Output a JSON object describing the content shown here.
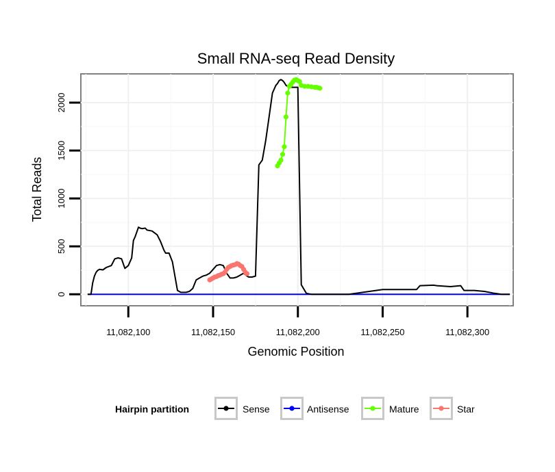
{
  "chart_data": {
    "type": "line",
    "title": "Small RNA-seq Read Density",
    "xlabel": "Genomic Position",
    "ylabel": "Total Reads",
    "xlim": [
      11082072,
      11082327
    ],
    "ylim": [
      -120,
      2300
    ],
    "xticks": [
      11082100,
      11082150,
      11082200,
      11082250,
      11082300
    ],
    "xtick_labels": [
      "11,082,100",
      "11,082,150",
      "11,082,200",
      "11,082,250",
      "11,082,300"
    ],
    "yticks": [
      0,
      500,
      1000,
      1500,
      2000
    ],
    "ytick_labels": [
      "0",
      "500",
      "1000",
      "1500",
      "2000"
    ],
    "grid": true,
    "legend": {
      "title": "Hairpin partition",
      "position": "bottom",
      "entries": [
        "Sense",
        "Antisense",
        "Mature",
        "Star"
      ]
    },
    "series": [
      {
        "name": "Sense",
        "color": "#000000",
        "markers": false,
        "x": [
          11082076,
          11082078,
          11082079,
          11082080,
          11082081,
          11082082,
          11082083,
          11082085,
          11082087,
          11082090,
          11082092,
          11082094,
          11082096,
          11082098,
          11082100,
          11082102,
          11082103,
          11082104,
          11082105,
          11082106,
          11082107,
          11082108,
          11082110,
          11082111,
          11082114,
          11082117,
          11082119,
          11082121,
          11082122,
          11082124,
          11082126,
          11082129,
          11082131,
          11082133,
          11082134,
          11082136,
          11082138,
          11082140,
          11082142,
          11082144,
          11082146,
          11082148,
          11082150,
          11082152,
          11082154,
          11082156,
          11082158,
          11082160,
          11082162,
          11082164,
          11082166,
          11082168,
          11082170,
          11082171,
          11082172,
          11082173,
          11082175,
          11082177,
          11082179,
          11082181,
          11082183,
          11082185,
          11082187,
          11082188,
          11082189,
          11082190,
          11082191,
          11082192,
          11082193,
          11082194,
          11082195,
          11082196,
          11082198,
          11082200,
          11082202,
          11082205,
          11082208,
          11082211,
          11082214,
          11082215,
          11082216,
          11082218,
          11082230,
          11082250,
          11082270,
          11082272,
          11082280,
          11082282,
          11082290,
          11082296,
          11082298,
          11082302,
          11082304,
          11082310,
          11082316,
          11082320,
          11082323,
          11082325
        ],
        "values": [
          0,
          0,
          120,
          190,
          230,
          250,
          260,
          255,
          280,
          300,
          370,
          380,
          370,
          270,
          300,
          380,
          560,
          600,
          650,
          700,
          690,
          685,
          690,
          670,
          660,
          620,
          550,
          460,
          430,
          430,
          340,
          40,
          20,
          20,
          20,
          30,
          60,
          150,
          170,
          190,
          200,
          220,
          260,
          300,
          310,
          300,
          220,
          170,
          170,
          180,
          200,
          220,
          190,
          180,
          180,
          180,
          190,
          1350,
          1400,
          1600,
          1850,
          2100,
          2180,
          2200,
          2230,
          2240,
          2230,
          2210,
          2180,
          2170,
          2170,
          2160,
          2160,
          2160,
          100,
          10,
          0,
          0,
          0,
          0,
          0,
          0,
          0,
          50,
          50,
          90,
          95,
          90,
          80,
          90,
          40,
          40,
          40,
          30,
          10,
          0,
          0,
          0
        ]
      },
      {
        "name": "Antisense",
        "color": "#0000ff",
        "markers": false,
        "x": [
          11082076,
          11082325
        ],
        "values": [
          0,
          0
        ]
      },
      {
        "name": "Mature",
        "color": "#66ff00",
        "markers": true,
        "x": [
          11082188,
          11082189,
          11082190,
          11082191,
          11082192,
          11082193,
          11082194,
          11082195,
          11082196,
          11082197,
          11082198,
          11082199,
          11082200,
          11082201,
          11082202,
          11082204,
          11082206,
          11082208,
          11082210,
          11082211,
          11082212,
          11082213
        ],
        "values": [
          1340,
          1370,
          1400,
          1460,
          1540,
          1850,
          2100,
          2170,
          2190,
          2215,
          2235,
          2240,
          2230,
          2220,
          2180,
          2170,
          2170,
          2165,
          2160,
          2160,
          2155,
          2150
        ]
      },
      {
        "name": "Star",
        "color": "#f8766d",
        "markers": true,
        "x": [
          11082148,
          11082149,
          11082150,
          11082151,
          11082152,
          11082153,
          11082154,
          11082155,
          11082156,
          11082157,
          11082158,
          11082159,
          11082160,
          11082161,
          11082162,
          11082163,
          11082164,
          11082165,
          11082166,
          11082167,
          11082168,
          11082169,
          11082170
        ],
        "values": [
          150,
          160,
          170,
          180,
          185,
          195,
          200,
          210,
          215,
          230,
          260,
          280,
          290,
          300,
          305,
          310,
          320,
          315,
          300,
          290,
          260,
          230,
          215
        ]
      }
    ]
  }
}
